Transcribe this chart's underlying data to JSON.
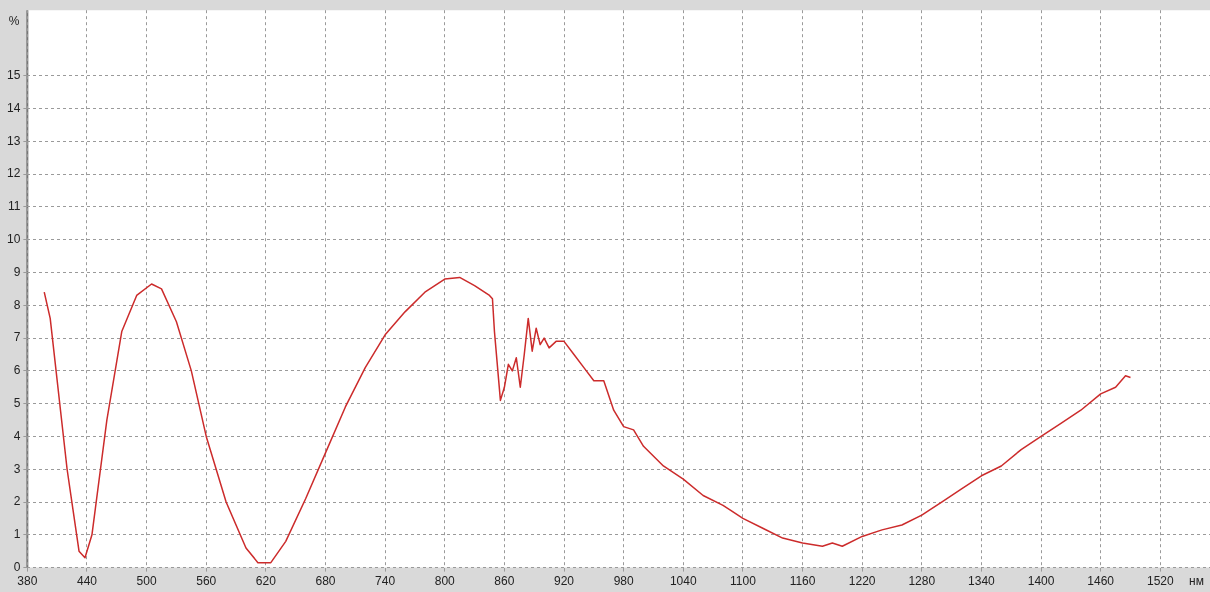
{
  "chart_data": {
    "type": "line",
    "xlabel": "нм",
    "ylabel": "%",
    "xlim": [
      380,
      1570
    ],
    "xticks": [
      380,
      440,
      500,
      560,
      620,
      680,
      740,
      800,
      860,
      920,
      980,
      1040,
      1100,
      1160,
      1220,
      1280,
      1340,
      1400,
      1460,
      1520
    ],
    "ylim": [
      0,
      17
    ],
    "yticks": [
      0,
      1,
      2,
      3,
      4,
      5,
      6,
      7,
      8,
      9,
      10,
      11,
      12,
      13,
      14,
      15
    ],
    "grid": true,
    "legend": false,
    "marker": "none",
    "line_style": "solid",
    "series": [
      {
        "color": "#cc2b2b",
        "x": [
          397,
          403,
          420,
          432,
          438,
          445,
          460,
          475,
          490,
          505,
          515,
          530,
          545,
          560,
          580,
          600,
          612,
          625,
          640,
          660,
          680,
          700,
          720,
          740,
          760,
          780,
          800,
          815,
          830,
          845,
          848,
          850,
          856,
          860,
          864,
          868,
          872,
          876,
          880,
          884,
          888,
          892,
          896,
          900,
          905,
          912,
          920,
          930,
          940,
          950,
          960,
          970,
          980,
          990,
          1000,
          1020,
          1040,
          1060,
          1080,
          1100,
          1120,
          1140,
          1160,
          1180,
          1190,
          1200,
          1220,
          1240,
          1260,
          1280,
          1300,
          1320,
          1340,
          1360,
          1380,
          1400,
          1420,
          1440,
          1460,
          1475,
          1485,
          1490
        ],
        "values": [
          8.4,
          7.6,
          3,
          0.5,
          0.3,
          1,
          4.5,
          7.2,
          8.3,
          8.65,
          8.5,
          7.5,
          6,
          4,
          2,
          0.6,
          0.15,
          0.15,
          0.8,
          2.1,
          3.5,
          4.9,
          6.1,
          7.1,
          7.8,
          8.4,
          8.8,
          8.85,
          8.6,
          8.3,
          8.2,
          7.2,
          5.1,
          5.5,
          6.2,
          6.0,
          6.4,
          5.5,
          6.5,
          7.6,
          6.6,
          7.3,
          6.8,
          7.0,
          6.7,
          6.9,
          6.9,
          6.5,
          6.1,
          5.7,
          5.7,
          4.8,
          4.3,
          4.2,
          3.7,
          3.1,
          2.7,
          2.2,
          1.9,
          1.5,
          1.2,
          0.9,
          0.75,
          0.65,
          0.75,
          0.65,
          0.95,
          1.15,
          1.3,
          1.6,
          2.0,
          2.4,
          2.8,
          3.1,
          3.6,
          4.0,
          4.4,
          4.8,
          5.3,
          5.5,
          5.85,
          5.8
        ]
      }
    ]
  }
}
